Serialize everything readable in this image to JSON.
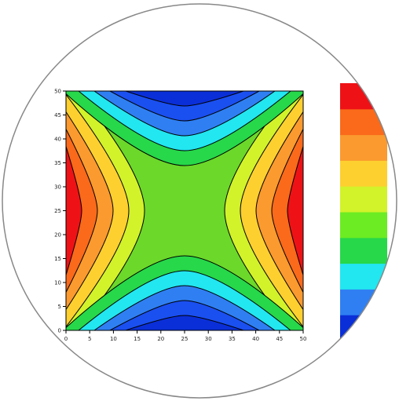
{
  "chart_data": {
    "type": "heatmap",
    "title": "",
    "xlabel": "",
    "ylabel": "",
    "xlim": [
      0,
      50
    ],
    "ylim": [
      0,
      50
    ],
    "x_ticks": [
      "0",
      "5",
      "10",
      "15",
      "20",
      "25",
      "30",
      "35",
      "40",
      "45",
      "50"
    ],
    "y_ticks": [
      "0",
      "5",
      "10",
      "15",
      "20",
      "25",
      "30",
      "35",
      "40",
      "45",
      "50"
    ],
    "field": "quadrupole pattern: maxima at left and right edges (y≈25), minima at top and bottom edges (x≈25)",
    "contour_levels": 9,
    "colorbar": {
      "colors": [
        "#0a2fd8",
        "#2f7ff2",
        "#22e6f0",
        "#26d84a",
        "#6cec22",
        "#d2f22a",
        "#fdd030",
        "#fb9a2e",
        "#fa6a1a",
        "#ee1216"
      ]
    },
    "colors": {
      "background": "#6bd82a",
      "frame": "#000000",
      "circle_border": "#888888"
    }
  }
}
